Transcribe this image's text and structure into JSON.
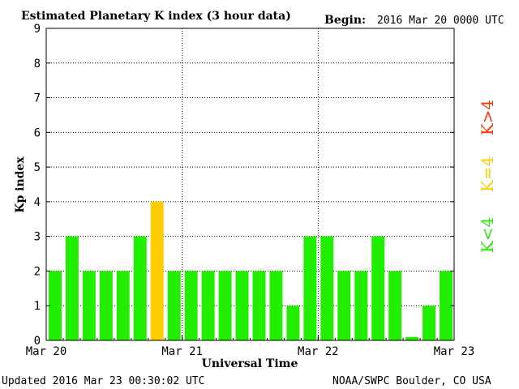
{
  "chart_data": {
    "type": "bar",
    "title": "Estimated Planetary K index (3 hour data)",
    "begin_label": "Begin:",
    "begin_value": "2016 Mar 20 0000 UTC",
    "xlabel": "Universal Time",
    "ylabel": "Kp index",
    "ylim": [
      0,
      9
    ],
    "yticks": [
      "0",
      "1",
      "2",
      "3",
      "4",
      "5",
      "6",
      "7",
      "8",
      "9"
    ],
    "xticks": [
      "Mar 20",
      "Mar 21",
      "Mar 22",
      "Mar 23"
    ],
    "values": [
      2,
      3,
      2,
      2,
      2,
      3,
      4,
      2,
      2,
      2,
      2,
      2,
      2,
      2,
      1,
      3,
      3,
      2,
      2,
      3,
      2,
      0.1,
      1,
      2
    ],
    "grid": true,
    "legend": [
      {
        "label": "K>4",
        "color": "#ff3300"
      },
      {
        "label": "K=4",
        "color": "#ffcc00"
      },
      {
        "label": "K<4",
        "color": "#22ee00"
      }
    ],
    "colors": {
      "below": "#22ee00",
      "equal": "#ffcc00",
      "above": "#ff3300"
    }
  },
  "footer": {
    "updated": "Updated 2016 Mar 23 00:30:02 UTC",
    "source": "NOAA/SWPC Boulder, CO USA"
  }
}
